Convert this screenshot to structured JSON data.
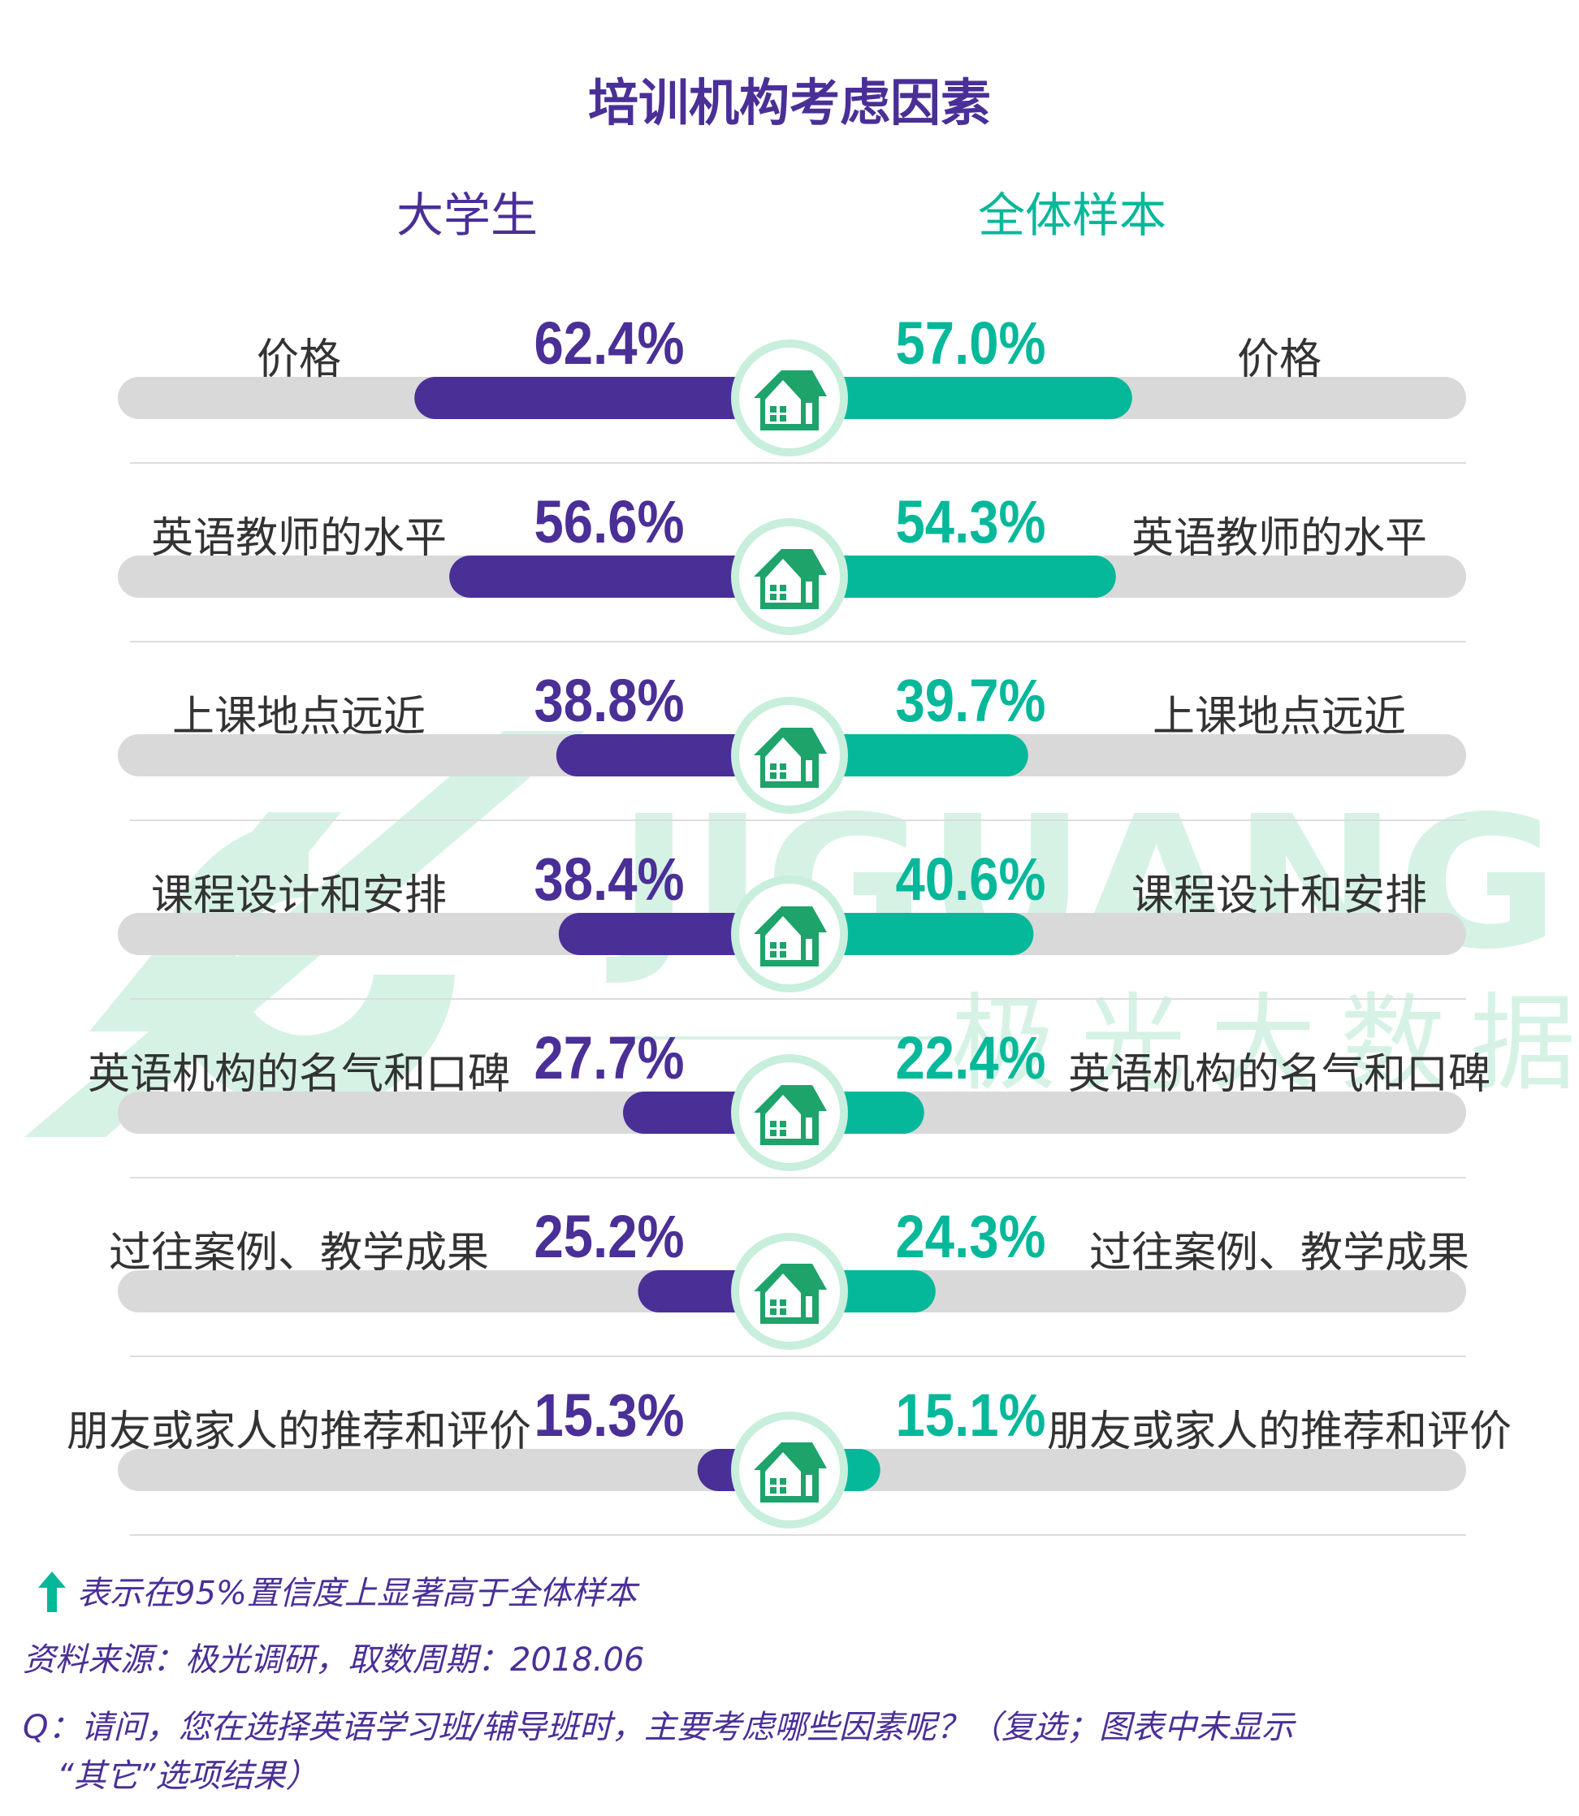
{
  "chart_data": {
    "type": "bar",
    "title": "培训机构考虑因素",
    "series": [
      {
        "name": "大学生",
        "values": [
          62.4,
          56.6,
          38.8,
          38.4,
          27.7,
          25.2,
          15.3
        ]
      },
      {
        "name": "全体样本",
        "values": [
          57.0,
          54.3,
          39.7,
          40.6,
          22.4,
          24.3,
          15.1
        ]
      }
    ],
    "categories": [
      "价格",
      "英语教师的水平",
      "上课地点远近",
      "课程设计和安排",
      "英语机构的名气和口碑",
      "过往案例、教学成果",
      "朋友或家人的推荐和评价"
    ],
    "value_labels_left": [
      "62.4%",
      "56.6%",
      "38.8%",
      "38.4%",
      "27.7%",
      "25.2%",
      "15.3%"
    ],
    "value_labels_right": [
      "57.0%",
      "54.3%",
      "39.7%",
      "40.6%",
      "22.4%",
      "24.3%",
      "15.1%"
    ],
    "colors": {
      "left": "#4a2f97",
      "right": "#05b89a",
      "track": "#d9d9d9",
      "circle": "#c8eedc",
      "title": "#4a2f97"
    }
  },
  "watermark": {
    "text": "JIGUANG",
    "subtext": "极光大数据"
  },
  "notes": {
    "significance": "表示在95%置信度上显著高于全体样本",
    "source": "资料来源：极光调研，取数周期：2018.06",
    "question_line1": "Q：请问，您在选择英语学习班/辅导班时，主要考虑哪些因素呢？（复选；图表中未显示",
    "question_line2": "“其它”选项结果）"
  },
  "icons": {
    "row_icon": "house-icon",
    "significance_icon": "up-arrow-icon"
  }
}
